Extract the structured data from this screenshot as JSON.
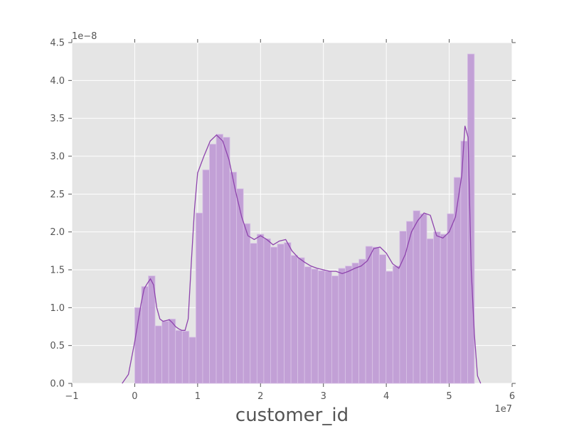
{
  "chart_data": {
    "type": "bar",
    "title": "",
    "xlabel": "customer_id",
    "ylabel": "",
    "xlim": [
      -1,
      6
    ],
    "ylim": [
      0,
      4.5
    ],
    "x_offset_label": "1e7",
    "y_offset_label": "1e−8",
    "grid": true,
    "legend": "none",
    "colors": {
      "background": "#e5e5e5",
      "grid": "#ffffff",
      "bar_fill": "#c2a0d6",
      "bar_edge": "#d9c4e6",
      "kde_line": "#8e44ad",
      "tick_text": "#555555"
    },
    "x_ticks": [
      -1,
      0,
      1,
      2,
      3,
      4,
      5,
      6
    ],
    "x_tick_labels": [
      "−1",
      "0",
      "1",
      "2",
      "3",
      "4",
      "5",
      "6"
    ],
    "y_ticks": [
      0,
      0.5,
      1,
      1.5,
      2,
      2.5,
      3,
      3.5,
      4,
      4.5
    ],
    "y_tick_labels": [
      "0.0",
      "0.5",
      "1.0",
      "1.5",
      "2.0",
      "2.5",
      "3.0",
      "3.5",
      "4.0",
      "4.5"
    ],
    "histogram": {
      "bin_start": 0,
      "bin_width": 0.108,
      "values": [
        1.0,
        1.28,
        1.42,
        0.76,
        0.82,
        0.85,
        0.7,
        0.69,
        0.61,
        2.25,
        2.82,
        3.16,
        3.29,
        3.25,
        2.79,
        2.57,
        2.11,
        1.85,
        1.97,
        1.91,
        1.8,
        1.84,
        1.86,
        1.69,
        1.66,
        1.54,
        1.51,
        1.49,
        1.48,
        1.42,
        1.52,
        1.55,
        1.59,
        1.64,
        1.81,
        1.8,
        1.7,
        1.48,
        1.55,
        2.01,
        2.14,
        2.28,
        2.24,
        1.91,
        2.0,
        1.97,
        2.24,
        2.72,
        3.2,
        4.35
      ]
    },
    "series": [
      {
        "type": "kde",
        "x": [
          -0.2,
          -0.1,
          0.0,
          0.05,
          0.1,
          0.15,
          0.2,
          0.25,
          0.3,
          0.35,
          0.4,
          0.45,
          0.5,
          0.55,
          0.6,
          0.65,
          0.7,
          0.75,
          0.8,
          0.85,
          0.9,
          0.95,
          1.0,
          1.1,
          1.2,
          1.3,
          1.4,
          1.5,
          1.6,
          1.7,
          1.8,
          1.9,
          2.0,
          2.1,
          2.2,
          2.3,
          2.4,
          2.5,
          2.6,
          2.7,
          2.8,
          2.9,
          3.0,
          3.1,
          3.2,
          3.3,
          3.4,
          3.5,
          3.6,
          3.7,
          3.8,
          3.9,
          4.0,
          4.1,
          4.2,
          4.3,
          4.4,
          4.5,
          4.6,
          4.7,
          4.8,
          4.9,
          5.0,
          5.1,
          5.2,
          5.25,
          5.3,
          5.35,
          5.4,
          5.45,
          5.5
        ],
        "y": [
          0.0,
          0.12,
          0.55,
          0.8,
          1.05,
          1.25,
          1.32,
          1.38,
          1.3,
          1.0,
          0.85,
          0.82,
          0.83,
          0.84,
          0.8,
          0.75,
          0.72,
          0.7,
          0.7,
          0.85,
          1.6,
          2.3,
          2.78,
          3.0,
          3.2,
          3.28,
          3.2,
          2.95,
          2.55,
          2.2,
          1.95,
          1.9,
          1.95,
          1.9,
          1.83,
          1.88,
          1.9,
          1.75,
          1.66,
          1.6,
          1.55,
          1.52,
          1.5,
          1.48,
          1.48,
          1.45,
          1.48,
          1.52,
          1.55,
          1.62,
          1.78,
          1.8,
          1.72,
          1.58,
          1.52,
          1.7,
          2.0,
          2.15,
          2.25,
          2.22,
          1.95,
          1.92,
          2.0,
          2.2,
          2.75,
          3.4,
          3.25,
          1.5,
          0.65,
          0.1,
          0.0
        ]
      }
    ]
  }
}
